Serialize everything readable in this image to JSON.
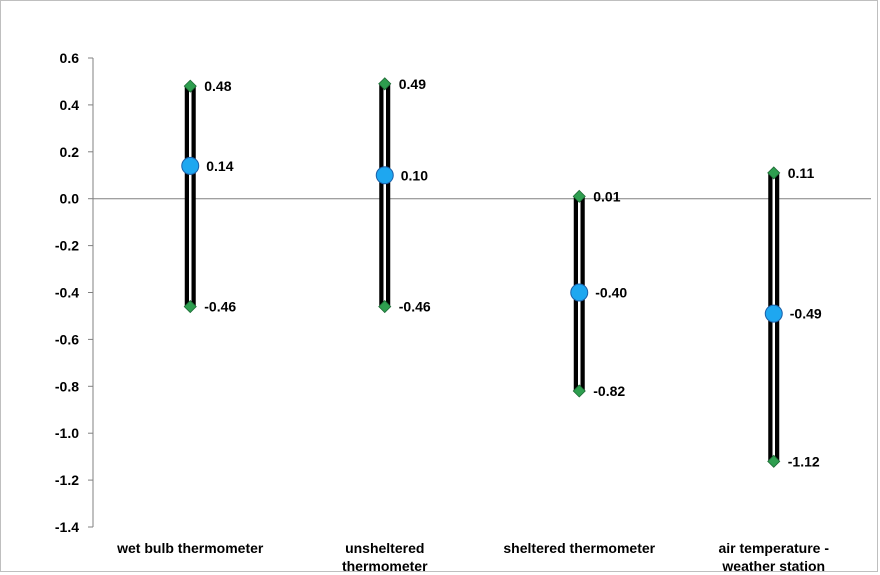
{
  "chart_data": {
    "type": "range",
    "title": "",
    "xlabel": "",
    "ylabel": "",
    "ylim": [
      -1.4,
      0.6
    ],
    "yticks": [
      0.6,
      0.4,
      0.2,
      0.0,
      -0.2,
      -0.4,
      -0.6,
      -0.8,
      -1.0,
      -1.2,
      -1.4
    ],
    "ytick_labels": [
      "0.6",
      "0.4",
      "0.2",
      "0.0",
      "-0.2",
      "-0.4",
      "-0.6",
      "-0.8",
      "-1.0",
      "-1.2",
      "-1.4"
    ],
    "grid": false,
    "legend": "none",
    "categories": [
      {
        "lines": [
          "wet bulb thermometer"
        ]
      },
      {
        "lines": [
          "unsheltered",
          "thermometer"
        ]
      },
      {
        "lines": [
          "sheltered thermometer"
        ]
      },
      {
        "lines": [
          "air temperature -",
          "weather station"
        ]
      }
    ],
    "high": [
      0.48,
      0.49,
      0.01,
      0.11
    ],
    "mean": [
      0.14,
      0.1,
      -0.4,
      -0.49
    ],
    "low": [
      -0.46,
      -0.46,
      -0.82,
      -1.12
    ],
    "high_labels": [
      "0.48",
      "0.49",
      "0.01",
      "0.11"
    ],
    "mean_labels": [
      "0.14",
      "0.10",
      "-0.40",
      "-0.49"
    ],
    "low_labels": [
      "-0.46",
      "-0.46",
      "-0.82",
      "-1.12"
    ],
    "colors": {
      "range_bar": "#000000",
      "mean_marker": "#1ea7f0",
      "mean_marker_edge": "#1b5fa8",
      "extreme_marker": "#2e9e4f",
      "axis": "#808080"
    }
  }
}
